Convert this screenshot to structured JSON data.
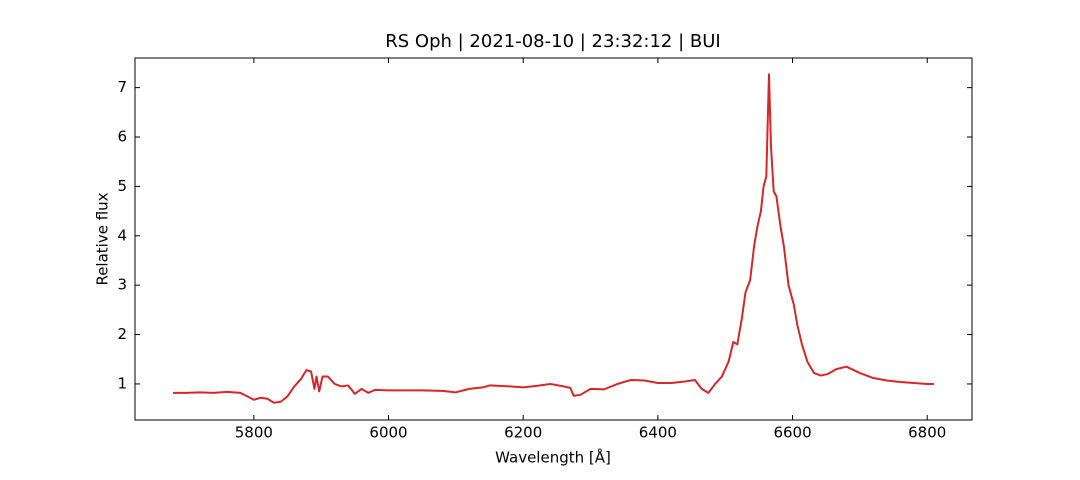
{
  "chart_data": {
    "type": "line",
    "title": "RS Oph | 2021-08-10 | 23:32:12 | BUI",
    "x_label": "Wavelength [Å]",
    "y_label": "Relative flux",
    "color": "#d62728",
    "x": [
      5680,
      5700,
      5720,
      5740,
      5760,
      5780,
      5790,
      5800,
      5810,
      5820,
      5830,
      5840,
      5850,
      5860,
      5870,
      5878,
      5885,
      5890,
      5893,
      5897,
      5902,
      5910,
      5920,
      5930,
      5940,
      5950,
      5960,
      5970,
      5980,
      6000,
      6050,
      6080,
      6100,
      6120,
      6140,
      6150,
      6180,
      6200,
      6220,
      6240,
      6260,
      6270,
      6275,
      6285,
      6300,
      6320,
      6340,
      6360,
      6380,
      6400,
      6420,
      6440,
      6455,
      6465,
      6475,
      6485,
      6495,
      6505,
      6512,
      6518,
      6525,
      6530,
      6537,
      6543,
      6548,
      6553,
      6557,
      6561,
      6565,
      6568,
      6572,
      6576,
      6582,
      6587,
      6594,
      6602,
      6607,
      6614,
      6622,
      6632,
      6642,
      6652,
      6665,
      6680,
      6700,
      6720,
      6740,
      6760,
      6780,
      6800,
      6810
    ],
    "values": [
      0.82,
      0.82,
      0.83,
      0.82,
      0.84,
      0.82,
      0.75,
      0.68,
      0.72,
      0.7,
      0.62,
      0.64,
      0.75,
      0.95,
      1.1,
      1.28,
      1.25,
      0.9,
      1.15,
      0.85,
      1.15,
      1.15,
      1.0,
      0.95,
      0.97,
      0.8,
      0.9,
      0.82,
      0.88,
      0.87,
      0.87,
      0.86,
      0.83,
      0.9,
      0.93,
      0.97,
      0.95,
      0.93,
      0.96,
      1.0,
      0.95,
      0.92,
      0.76,
      0.78,
      0.9,
      0.89,
      1.0,
      1.08,
      1.07,
      1.02,
      1.02,
      1.05,
      1.08,
      0.9,
      0.82,
      1.0,
      1.15,
      1.45,
      1.85,
      1.8,
      2.35,
      2.85,
      3.1,
      3.8,
      4.2,
      4.5,
      5.0,
      5.2,
      7.27,
      5.8,
      4.9,
      4.8,
      4.2,
      3.8,
      3.0,
      2.6,
      2.2,
      1.8,
      1.45,
      1.22,
      1.17,
      1.2,
      1.3,
      1.35,
      1.22,
      1.12,
      1.07,
      1.04,
      1.02,
      1.0,
      1.0
    ],
    "xlim": [
      5623.5,
      6866.5
    ],
    "ylim": [
      0.27,
      7.6
    ],
    "xticks": [
      5800,
      6000,
      6200,
      6400,
      6600,
      6800
    ],
    "yticks": [
      1,
      2,
      3,
      4,
      5,
      6,
      7
    ]
  }
}
